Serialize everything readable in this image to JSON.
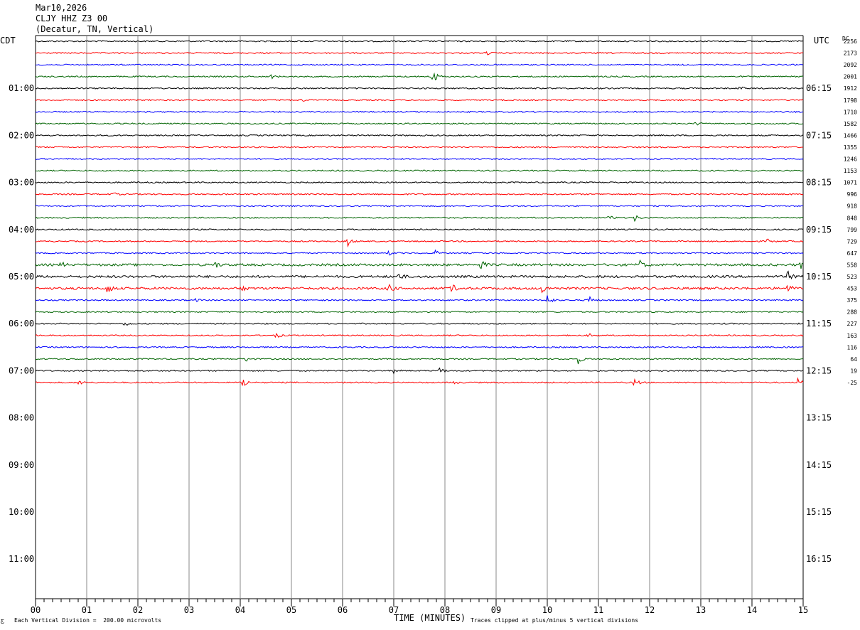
{
  "header": {
    "date": "Mar10,2026",
    "station": "CLJY HHZ Z3 00",
    "location": "(Decatur, TN, Vertical)"
  },
  "left_tz": "CDT",
  "right_tz": "UTC",
  "dc_label": "DC",
  "footer": {
    "scale_note": "Each Vertical Division =  200.00 microvolts",
    "xlabel": "TIME (MINUTES)",
    "clip_note": "Traces clipped at plus/minus 5 vertical divisions",
    "corner_mark": "Ƹ"
  },
  "chart_data": {
    "type": "line",
    "title": "CLJY HHZ Z3 00",
    "xlabel": "TIME (MINUTES)",
    "ylabel": "",
    "xlim": [
      0,
      15
    ],
    "x_ticks": [
      "00",
      "01",
      "02",
      "03",
      "04",
      "05",
      "06",
      "07",
      "08",
      "09",
      "10",
      "11",
      "12",
      "13",
      "14",
      "15"
    ],
    "hour_labels_left": [
      "01:00",
      "02:00",
      "03:00",
      "04:00",
      "05:00",
      "06:00",
      "07:00",
      "08:00",
      "09:00",
      "10:00",
      "11:00"
    ],
    "hour_labels_right": [
      "06:15",
      "07:15",
      "08:15",
      "09:15",
      "10:15",
      "11:15",
      "12:15",
      "13:15",
      "14:15",
      "15:15",
      "16:15"
    ],
    "trace_colors": [
      "#000000",
      "#ff0000",
      "#0000ff",
      "#006400"
    ],
    "dc_offsets": [
      "2256",
      "2173",
      "2092",
      "2001",
      "1912",
      "1798",
      "1710",
      "1582",
      "1466",
      "1355",
      "1246",
      "1153",
      "1071",
      "996",
      "918",
      "848",
      "799",
      "729",
      "647",
      "558",
      "523",
      "453",
      "375",
      "288",
      "227",
      "163",
      "116",
      "64",
      "19",
      "-25"
    ],
    "rows_total": 44,
    "rows_with_data": 30,
    "grid": true,
    "events": [
      {
        "row": 1,
        "x": 8.8,
        "amp": 3
      },
      {
        "row": 3,
        "x": 4.6,
        "amp": 3
      },
      {
        "row": 3,
        "x": 7.75,
        "amp": 14
      },
      {
        "row": 4,
        "x": 13.75,
        "amp": 3
      },
      {
        "row": 5,
        "x": 5.2,
        "amp": 2
      },
      {
        "row": 7,
        "x": 12.9,
        "amp": 3
      },
      {
        "row": 11,
        "x": 8.95,
        "amp": 4
      },
      {
        "row": 13,
        "x": 1.5,
        "amp": 3
      },
      {
        "row": 15,
        "x": 11.2,
        "amp": 5
      },
      {
        "row": 15,
        "x": 11.7,
        "amp": 5
      },
      {
        "row": 17,
        "x": 6.1,
        "amp": 7
      },
      {
        "row": 17,
        "x": 14.3,
        "amp": 3
      },
      {
        "row": 18,
        "x": 6.9,
        "amp": 3
      },
      {
        "row": 18,
        "x": 7.8,
        "amp": 4
      },
      {
        "row": 19,
        "x": 0.5,
        "amp": 4
      },
      {
        "row": 19,
        "x": 3.5,
        "amp": 5
      },
      {
        "row": 19,
        "x": 8.7,
        "amp": 7
      },
      {
        "row": 19,
        "x": 11.8,
        "amp": 7
      },
      {
        "row": 19,
        "x": 14.95,
        "amp": 5
      },
      {
        "row": 20,
        "x": 7.1,
        "amp": 5
      },
      {
        "row": 20,
        "x": 14.7,
        "amp": 7
      },
      {
        "row": 21,
        "x": 1.4,
        "amp": 9
      },
      {
        "row": 21,
        "x": 4.0,
        "amp": 6
      },
      {
        "row": 21,
        "x": 6.9,
        "amp": 7
      },
      {
        "row": 21,
        "x": 8.1,
        "amp": 10
      },
      {
        "row": 21,
        "x": 9.9,
        "amp": 6
      },
      {
        "row": 21,
        "x": 14.7,
        "amp": 6
      },
      {
        "row": 22,
        "x": 3.1,
        "amp": 3
      },
      {
        "row": 22,
        "x": 10.0,
        "amp": 9
      },
      {
        "row": 22,
        "x": 10.8,
        "amp": 8
      },
      {
        "row": 24,
        "x": 1.75,
        "amp": 4
      },
      {
        "row": 25,
        "x": 4.7,
        "amp": 4
      },
      {
        "row": 25,
        "x": 10.8,
        "amp": 3
      },
      {
        "row": 27,
        "x": 4.1,
        "amp": 4
      },
      {
        "row": 27,
        "x": 10.6,
        "amp": 7
      },
      {
        "row": 28,
        "x": 7.0,
        "amp": 3
      },
      {
        "row": 28,
        "x": 7.9,
        "amp": 5
      },
      {
        "row": 29,
        "x": 0.85,
        "amp": 4
      },
      {
        "row": 29,
        "x": 4.05,
        "amp": 9
      },
      {
        "row": 29,
        "x": 8.15,
        "amp": 3
      },
      {
        "row": 29,
        "x": 11.7,
        "amp": 7
      },
      {
        "row": 29,
        "x": 14.9,
        "amp": 6
      }
    ],
    "noisy_rows": [
      19,
      20,
      21
    ]
  }
}
